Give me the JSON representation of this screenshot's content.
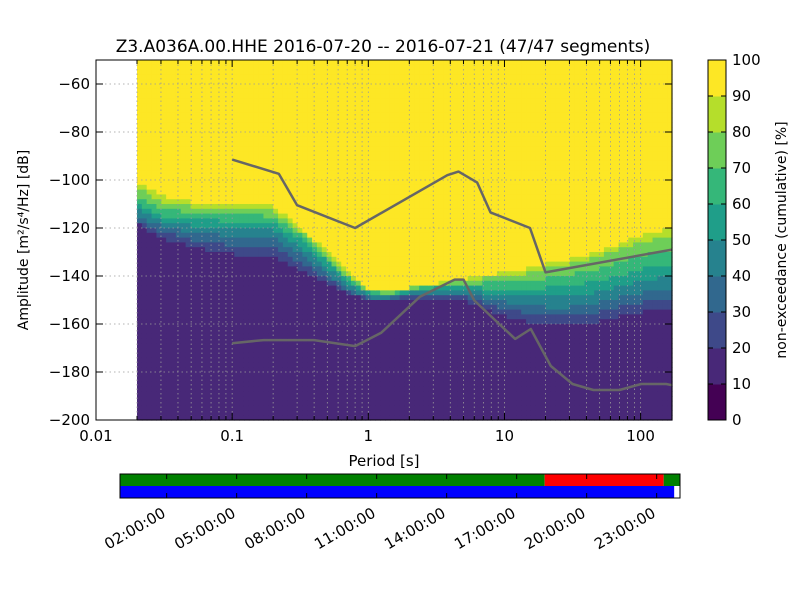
{
  "chart_data": {
    "type": "heatmap",
    "title": "Z3.A036A.00.HHE   2016-07-20 -- 2016-07-21  (47/47 segments)",
    "xlabel": "Period [s]",
    "ylabel": "Amplitude [m²/s⁴/Hz] [dB]",
    "x_scale": "log",
    "xlim": [
      0.01,
      170
    ],
    "ylim": [
      -200,
      -50
    ],
    "x_ticks": [
      0.01,
      0.1,
      1,
      10,
      100
    ],
    "x_tick_labels": [
      "0.01",
      "0.1",
      "1",
      "10",
      "100"
    ],
    "y_ticks": [
      -200,
      -180,
      -160,
      -140,
      -120,
      -100,
      -80,
      -60
    ],
    "y_tick_labels": [
      "−200",
      "−180",
      "−160",
      "−140",
      "−120",
      "−100",
      "−80",
      "−60"
    ],
    "grid": true,
    "data_start_period": 0.02,
    "colorbar": {
      "label": "non-exceedance (cumulative) [%]",
      "range": [
        0,
        100
      ],
      "ticks": [
        0,
        10,
        20,
        30,
        40,
        50,
        60,
        70,
        80,
        90,
        100
      ],
      "colormap": "viridis",
      "colors": [
        "#440154",
        "#482878",
        "#3e4989",
        "#31688e",
        "#26828e",
        "#1f9e89",
        "#35b779",
        "#6ece58",
        "#b5de2b",
        "#fde725"
      ]
    },
    "psd_bands": {
      "periods": [
        0.02,
        0.03,
        0.05,
        0.08,
        0.1,
        0.15,
        0.2,
        0.3,
        0.5,
        0.7,
        1.0,
        1.5,
        2.0,
        3.0,
        5.0,
        7.0,
        10.0,
        15.0,
        20.0,
        30.0,
        50.0,
        70.0,
        100.0,
        170.0
      ],
      "p10": [
        -119,
        -126,
        -131,
        -135,
        -136,
        -136,
        -137,
        -141,
        -146,
        -150,
        -151,
        -151,
        -150,
        -150,
        -152,
        -156,
        -160,
        -162,
        -163,
        -163,
        -162,
        -160,
        -158,
        -156
      ],
      "p20": [
        -118,
        -124,
        -128,
        -130,
        -131,
        -131,
        -132,
        -137,
        -143,
        -147,
        -150,
        -150,
        -149,
        -149,
        -150,
        -153,
        -157,
        -159,
        -160,
        -160,
        -159,
        -157,
        -155,
        -153
      ],
      "p40": [
        -115,
        -119,
        -122,
        -123,
        -124,
        -123,
        -124,
        -130,
        -139,
        -145,
        -149,
        -149,
        -148,
        -147,
        -147,
        -149,
        -151,
        -152,
        -153,
        -153,
        -151,
        -149,
        -147,
        -145
      ],
      "p60": [
        -110,
        -115,
        -116,
        -117,
        -117,
        -117,
        -118,
        -124,
        -134,
        -142,
        -147,
        -148,
        -146,
        -145,
        -144,
        -145,
        -145,
        -145,
        -145,
        -144,
        -142,
        -140,
        -137,
        -135
      ],
      "p80": [
        -103,
        -109,
        -111,
        -112,
        -112,
        -112,
        -113,
        -120,
        -131,
        -139,
        -146,
        -147,
        -145,
        -144,
        -142,
        -141,
        -140,
        -139,
        -137,
        -135,
        -132,
        -129,
        -126,
        -123
      ],
      "p100": [
        -98,
        -104,
        -107,
        -108,
        -108,
        -108,
        -109,
        -117,
        -129,
        -137,
        -145,
        -146,
        -145,
        -143,
        -141,
        -139,
        -137,
        -135,
        -133,
        -131,
        -128,
        -124,
        -120,
        -117
      ]
    },
    "reference_models": [
      {
        "periods": [
          0.1,
          0.22,
          0.3,
          0.8,
          3.8,
          4.6,
          6.3,
          7.9,
          15.4,
          20.0,
          170.0
        ],
        "values": [
          -91.5,
          -97.4,
          -110.5,
          -120.0,
          -98.0,
          -96.5,
          -101.0,
          -113.5,
          -120.0,
          -138.5,
          -129.0
        ]
      },
      {
        "periods": [
          0.1,
          0.17,
          0.4,
          0.8,
          1.24,
          2.4,
          4.3,
          5.0,
          6.0,
          10.0,
          12.0,
          15.6,
          21.9,
          31.6,
          45.0,
          70.0,
          101.0,
          154.0,
          170.0
        ],
        "values": [
          -168.0,
          -166.7,
          -166.7,
          -169.2,
          -163.7,
          -148.6,
          -141.5,
          -141.5,
          -150.2,
          -162.1,
          -166.2,
          -162.1,
          -177.5,
          -185.0,
          -187.5,
          -187.5,
          -185.0,
          -185.0,
          -185.5
        ]
      }
    ],
    "timeline": {
      "tick_labels": [
        "02:00:00",
        "05:00:00",
        "08:00:00",
        "11:00:00",
        "14:00:00",
        "17:00:00",
        "20:00:00",
        "23:00:00"
      ],
      "tick_hours": [
        2,
        5,
        8,
        11,
        14,
        17,
        20,
        23
      ],
      "start_hour": 0,
      "end_hour": 24,
      "rows": [
        {
          "segments": [
            {
              "start_hour": 0.0,
              "end_hour": 18.2,
              "color": "#008000"
            },
            {
              "start_hour": 18.2,
              "end_hour": 23.3,
              "color": "#ff0000"
            },
            {
              "start_hour": 23.3,
              "end_hour": 24.0,
              "color": "#008000"
            }
          ]
        },
        {
          "segments": [
            {
              "start_hour": 0.0,
              "end_hour": 23.75,
              "color": "#0000ff"
            }
          ]
        }
      ]
    }
  }
}
